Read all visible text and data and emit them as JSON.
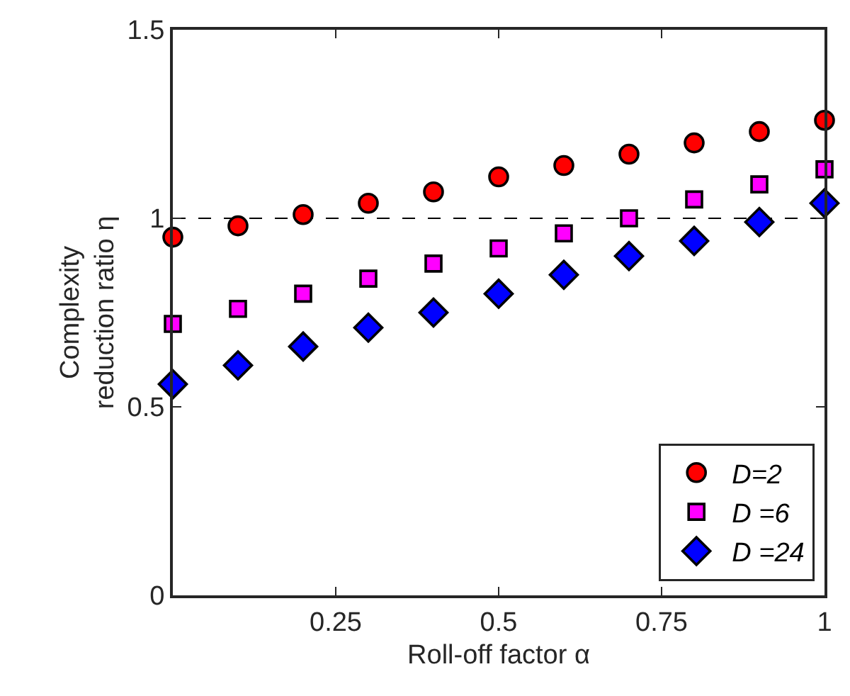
{
  "chart_data": {
    "type": "scatter",
    "xlabel": "Roll-off factor α",
    "ylabel": "Complexity\nreduction ratio η",
    "x": [
      0,
      0.1,
      0.2,
      0.3,
      0.4,
      0.5,
      0.6,
      0.7,
      0.8,
      0.9,
      1
    ],
    "series": [
      {
        "name": "D=2",
        "color": "#ff0000",
        "marker": "circle",
        "values": [
          0.95,
          0.98,
          1.01,
          1.04,
          1.07,
          1.11,
          1.14,
          1.17,
          1.2,
          1.23,
          1.26
        ]
      },
      {
        "name": "D =6",
        "color": "#ff00ff",
        "marker": "square",
        "values": [
          0.72,
          0.76,
          0.8,
          0.84,
          0.88,
          0.92,
          0.96,
          1.0,
          1.05,
          1.09,
          1.13
        ]
      },
      {
        "name": "D =24",
        "color": "#0000ff",
        "marker": "diamond",
        "values": [
          0.56,
          0.61,
          0.66,
          0.71,
          0.75,
          0.8,
          0.85,
          0.9,
          0.94,
          0.99,
          1.04
        ]
      }
    ],
    "xlim": [
      0,
      1
    ],
    "xticks": [
      0.25,
      0.5,
      0.75,
      1
    ],
    "ylim": [
      0,
      1.5
    ],
    "yticks": [
      0,
      0.5,
      1,
      1.5
    ],
    "ref_lines": [
      {
        "axis": "y",
        "value": 1,
        "color": "#000000",
        "line_style": "dashed"
      }
    ],
    "grid": false,
    "legend": "bottom right"
  }
}
